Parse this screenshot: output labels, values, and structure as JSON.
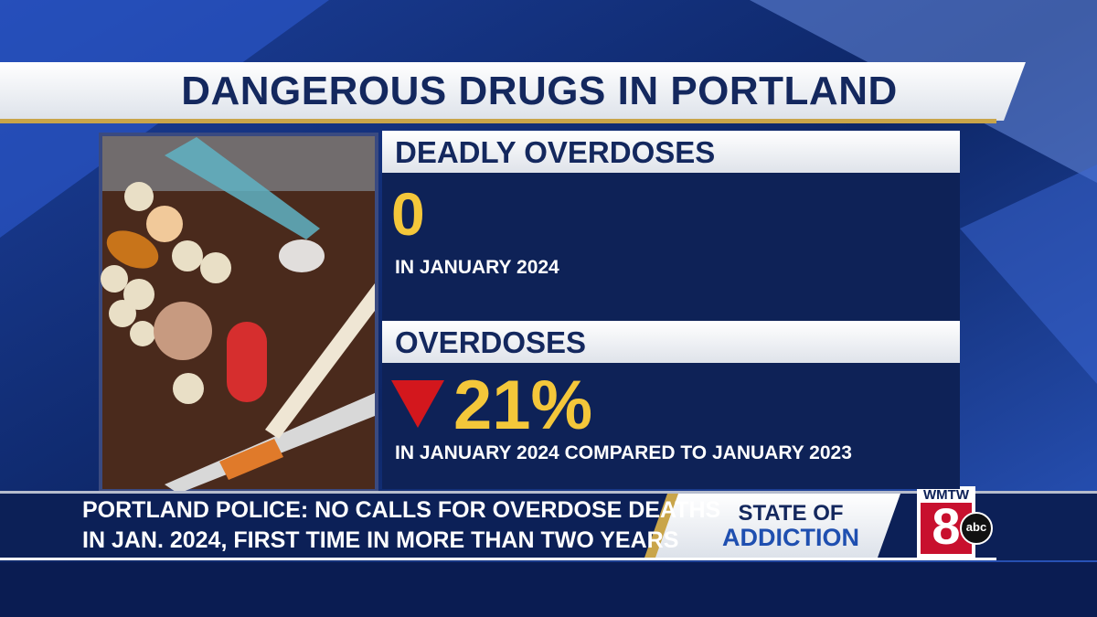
{
  "header": {
    "title": "DANGEROUS DRUGS IN PORTLAND"
  },
  "panels": [
    {
      "heading": "DEADLY OVERDOSES",
      "figure": "0",
      "caption": "IN JANUARY 2024"
    },
    {
      "heading": "OVERDOSES",
      "figure": "21%",
      "caption": "IN JANUARY 2024 COMPARED TO JANUARY 2023"
    }
  ],
  "lower_third": {
    "lines": [
      "PORTLAND POLICE: NO CALLS FOR OVERDOSE DEATHS",
      "IN JAN. 2024, FIRST TIME IN MORE THAN TWO YEARS"
    ],
    "segment": [
      "STATE OF",
      "ADDICTION"
    ]
  },
  "logo": {
    "station": "WMTW",
    "channel": "8",
    "network": "abc"
  }
}
